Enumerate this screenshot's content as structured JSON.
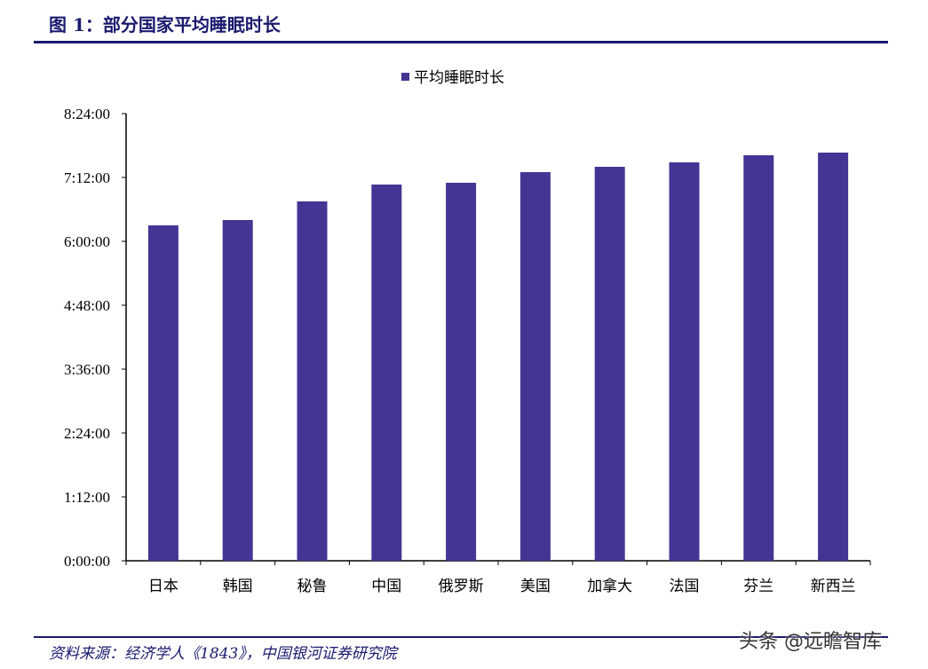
{
  "figure_title": "图 1：部分国家平均睡眠时长",
  "source": "资料来源：经济学人《1843》，中国银河证券研究院",
  "watermark": "头条 @远瞻智库",
  "chart_data": {
    "type": "bar",
    "title": "",
    "legend": {
      "entries": [
        "平均睡眠时长"
      ],
      "position": "top"
    },
    "categories": [
      "日本",
      "韩国",
      "秘鲁",
      "中国",
      "俄罗斯",
      "美国",
      "加拿大",
      "法国",
      "芬兰",
      "新西兰"
    ],
    "series": [
      {
        "name": "平均睡眠时长",
        "values": [
          "6:18",
          "6:24",
          "6:45",
          "7:04",
          "7:06",
          "7:18",
          "7:24",
          "7:29",
          "7:37",
          "7:40"
        ]
      }
    ],
    "ylim": [
      "0:00:00",
      "8:24:00"
    ],
    "yticks": [
      "0:00:00",
      "1:12:00",
      "2:24:00",
      "3:36:00",
      "4:48:00",
      "6:00:00",
      "7:12:00",
      "8:24:00"
    ],
    "grid": false,
    "colors": {
      "bar": "#433594"
    }
  }
}
